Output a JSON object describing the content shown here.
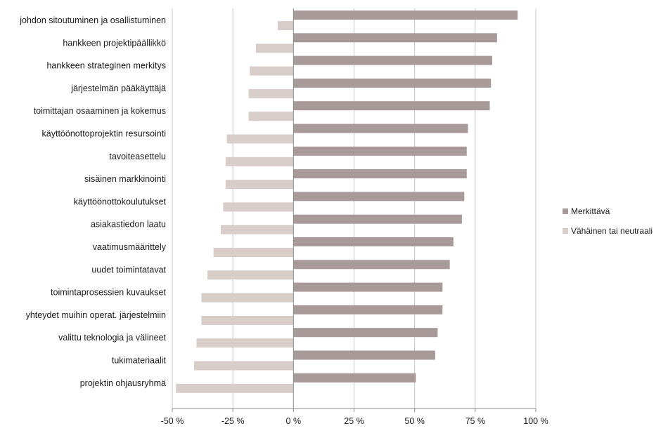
{
  "chart_data": {
    "type": "bar",
    "orientation": "horizontal",
    "title": "",
    "xlabel": "",
    "ylabel": "",
    "xlim": [
      -50,
      100
    ],
    "x_ticks": [
      -50,
      -25,
      0,
      25,
      50,
      75,
      100
    ],
    "x_tick_labels": [
      "-50 %",
      "-25 %",
      "0 %",
      "25 %",
      "50 %",
      "75 %",
      "100 %"
    ],
    "grid": "vertical",
    "legend_position": "right",
    "categories": [
      "johdon sitoutuminen ja osallistuminen",
      "hankkeen projektipäällikkö",
      "hankkeen strateginen merkitys",
      "järjestelmän pääkäyttäjä",
      "toimittajan osaaminen ja kokemus",
      "käyttöönottoprojektin resursointi",
      "tavoiteasettelu",
      "sisäinen markkinointi",
      "käyttöönottokoulutukset",
      "asiakastiedon laatu",
      "vaatimusmäärittely",
      "uudet toimintatavat",
      "toimintaprosessien kuvaukset",
      "yhteydet muihin operat. järjestelmiin",
      "valittu teknologia ja välineet",
      "tukimateriaalit",
      "projektin ohjausryhmä"
    ],
    "series": [
      {
        "name": "Merkittävä",
        "color": "#a89a98",
        "values": [
          92.5,
          84,
          82,
          81.5,
          81,
          72,
          71.5,
          71.5,
          70.5,
          69.5,
          66,
          64.5,
          61.5,
          61.5,
          59.5,
          58.5,
          50.5
        ]
      },
      {
        "name": "Vähäinen tai neutraali",
        "color": "#d9cdca",
        "values": [
          -6.5,
          -15.5,
          -18,
          -18.5,
          -18.5,
          -27.5,
          -28,
          -28,
          -29,
          -30,
          -33,
          -35.5,
          -38,
          -38,
          -40,
          -41,
          -48.5
        ]
      }
    ]
  }
}
